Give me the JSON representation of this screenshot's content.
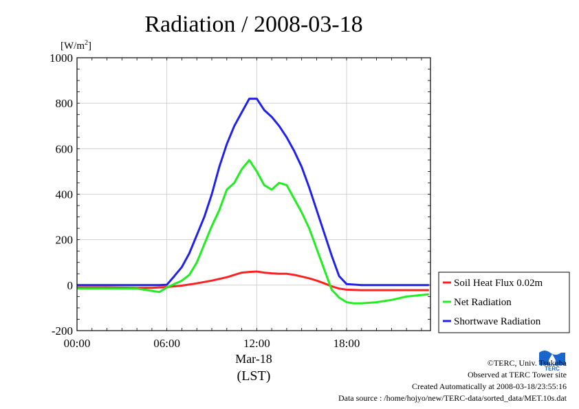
{
  "chart_data": {
    "type": "line",
    "title": "Radiation / 2008-03-18",
    "ylabel_unit": "[W/m2]",
    "ylim": [
      -200,
      1000
    ],
    "yticks": [
      -200,
      0,
      200,
      400,
      600,
      800,
      1000
    ],
    "xlim": [
      0,
      23.6
    ],
    "xticks": [
      {
        "value": 0,
        "label": "00:00"
      },
      {
        "value": 6,
        "label": "06:00"
      },
      {
        "value": 12,
        "label": "12:00"
      },
      {
        "value": 18,
        "label": "18:00"
      }
    ],
    "xdate": "Mar-18",
    "xunit": "(LST)",
    "grid": true,
    "legend_placement": "right-bottom",
    "series": [
      {
        "name": "Soil Heat Flux 0.02m",
        "color": "#ff2020",
        "x": [
          0,
          2,
          4,
          5,
          6,
          7,
          8,
          9,
          10,
          10.5,
          11,
          11.5,
          12,
          12.5,
          13,
          13.5,
          14,
          14.5,
          15,
          15.5,
          16,
          16.5,
          17,
          17.5,
          18,
          19,
          20,
          21,
          22,
          23.5
        ],
        "y": [
          -10,
          -10,
          -12,
          -12,
          -8,
          -2,
          8,
          20,
          35,
          45,
          55,
          58,
          60,
          55,
          52,
          50,
          50,
          45,
          38,
          30,
          20,
          8,
          -5,
          -15,
          -20,
          -22,
          -22,
          -22,
          -22,
          -22
        ]
      },
      {
        "name": "Net Radiation",
        "color": "#20ee20",
        "x": [
          0,
          2,
          4,
          5,
          5.5,
          6,
          6.5,
          7,
          7.5,
          8,
          8.5,
          9,
          9.5,
          10,
          10.5,
          11,
          11.5,
          12,
          12.5,
          13,
          13.5,
          14,
          14.5,
          15,
          15.5,
          16,
          16.5,
          17,
          17.5,
          18,
          18.5,
          19,
          20,
          21,
          22,
          23.5
        ],
        "y": [
          -15,
          -15,
          -15,
          -25,
          -30,
          -10,
          5,
          20,
          45,
          100,
          180,
          260,
          330,
          420,
          450,
          510,
          550,
          500,
          440,
          420,
          450,
          440,
          380,
          320,
          250,
          160,
          70,
          -20,
          -55,
          -75,
          -80,
          -80,
          -75,
          -65,
          -50,
          -40
        ]
      },
      {
        "name": "Shortwave Radiation",
        "color": "#2020ee",
        "x": [
          0,
          2,
          4,
          5,
          5.5,
          6,
          6.5,
          7,
          7.5,
          8,
          8.5,
          9,
          9.5,
          10,
          10.5,
          11,
          11.5,
          12,
          12.5,
          13,
          13.5,
          14,
          14.5,
          15,
          15.5,
          16,
          16.5,
          17,
          17.5,
          18,
          19,
          20,
          21,
          22,
          23.5
        ],
        "y": [
          0,
          0,
          0,
          0,
          0,
          2,
          40,
          80,
          140,
          220,
          300,
          400,
          520,
          620,
          700,
          760,
          820,
          820,
          770,
          740,
          700,
          650,
          590,
          520,
          430,
          330,
          230,
          130,
          40,
          5,
          0,
          0,
          0,
          0,
          0
        ]
      }
    ]
  },
  "footer": {
    "copyright": "©TERC, Univ. Tsukuba",
    "observed": "Observed at TERC Tower site",
    "created": "Created Automatically at 2008-03-18/23:55:16",
    "source": "Data source : /home/hojyo/new/TERC-data/sorted_data/MET.10s.dat"
  },
  "logo": {
    "text": "TERC",
    "color": "#1a66cc"
  }
}
